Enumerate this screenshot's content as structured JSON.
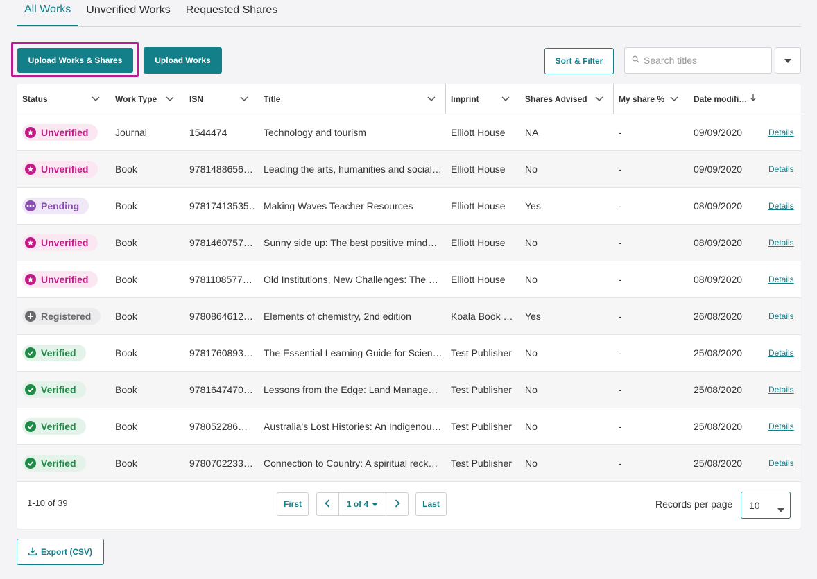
{
  "tabs": [
    {
      "label": "All Works",
      "active": true
    },
    {
      "label": "Unverified Works",
      "active": false
    },
    {
      "label": "Requested Shares",
      "active": false
    }
  ],
  "toolbar": {
    "upload_works_shares_label": "Upload Works & Shares",
    "upload_works_label": "Upload Works",
    "sort_filter_label": "Sort & Filter",
    "search_placeholder": "Search titles"
  },
  "table": {
    "headers": {
      "status": "Status",
      "work_type": "Work Type",
      "isn": "ISN",
      "title": "Title",
      "imprint": "Imprint",
      "shares_advised": "Shares Advised",
      "my_share": "My share %",
      "date_modified": "Date modifi…"
    },
    "rows": [
      {
        "status": "Unverified",
        "work_type": "Journal",
        "isn": "1544474",
        "title": "Technology and tourism",
        "imprint": "Elliott House",
        "shares_advised": "NA",
        "my_share": "-",
        "date_modified": "09/09/2020",
        "details": "Details"
      },
      {
        "status": "Unverified",
        "work_type": "Book",
        "isn": "9781488656…",
        "title": "Leading the arts, humanities and social…",
        "imprint": "Elliott House",
        "shares_advised": "No",
        "my_share": "-",
        "date_modified": "09/09/2020",
        "details": "Details"
      },
      {
        "status": "Pending",
        "work_type": "Book",
        "isn": "97817413535…",
        "title": "Making Waves Teacher Resources",
        "imprint": "Elliott House",
        "shares_advised": "Yes",
        "my_share": "-",
        "date_modified": "08/09/2020",
        "details": "Details"
      },
      {
        "status": "Unverified",
        "work_type": "Book",
        "isn": "9781460757…",
        "title": "Sunny side up: The best positive mind…",
        "imprint": "Elliott House",
        "shares_advised": "No",
        "my_share": "-",
        "date_modified": "08/09/2020",
        "details": "Details"
      },
      {
        "status": "Unverified",
        "work_type": "Book",
        "isn": "9781108577…",
        "title": "Old Institutions, New Challenges: The …",
        "imprint": "Elliott House",
        "shares_advised": "No",
        "my_share": "-",
        "date_modified": "08/09/2020",
        "details": "Details"
      },
      {
        "status": "Registered",
        "work_type": "Book",
        "isn": "9780864612…",
        "title": "Elements of chemistry, 2nd edition",
        "imprint": "Koala Book …",
        "shares_advised": "Yes",
        "my_share": "-",
        "date_modified": "26/08/2020",
        "details": "Details"
      },
      {
        "status": "Verified",
        "work_type": "Book",
        "isn": "9781760893…",
        "title": "The Essential Learning Guide for Scien…",
        "imprint": "Test Publisher",
        "shares_advised": "No",
        "my_share": "-",
        "date_modified": "25/08/2020",
        "details": "Details"
      },
      {
        "status": "Verified",
        "work_type": "Book",
        "isn": "9781647470…",
        "title": "Lessons from the Edge: Land Manage…",
        "imprint": "Test Publisher",
        "shares_advised": "No",
        "my_share": "-",
        "date_modified": "25/08/2020",
        "details": "Details"
      },
      {
        "status": "Verified",
        "work_type": "Book",
        "isn": "978052286…",
        "title": "Australia's Lost Histories: An Indigenou…",
        "imprint": "Test Publisher",
        "shares_advised": "No",
        "my_share": "-",
        "date_modified": "25/08/2020",
        "details": "Details"
      },
      {
        "status": "Verified",
        "work_type": "Book",
        "isn": "9780702233…",
        "title": "Connection to Country: A spiritual reck…",
        "imprint": "Test Publisher",
        "shares_advised": "No",
        "my_share": "-",
        "date_modified": "25/08/2020",
        "details": "Details"
      }
    ]
  },
  "status_styles": {
    "Unverified": {
      "bg": "#fbe7f2",
      "fg": "#c21a87",
      "icon": "star-circle-icon"
    },
    "Pending": {
      "bg": "#f1e8f7",
      "fg": "#8a4db3",
      "icon": "ellipsis-circle-icon"
    },
    "Registered": {
      "bg": "#ececee",
      "fg": "#6a6a6e",
      "icon": "plus-circle-icon"
    },
    "Verified": {
      "bg": "#e4f3ea",
      "fg": "#1f8a46",
      "icon": "check-circle-icon"
    }
  },
  "pagination": {
    "range_text": "1-10 of 39",
    "first_label": "First",
    "page_label": "1 of 4",
    "last_label": "Last",
    "records_per_page_label": "Records per page",
    "records_per_page_value": "10"
  },
  "export_label": "Export (CSV)",
  "colors": {
    "accent": "#127f89",
    "highlight": "#b81e8f"
  }
}
